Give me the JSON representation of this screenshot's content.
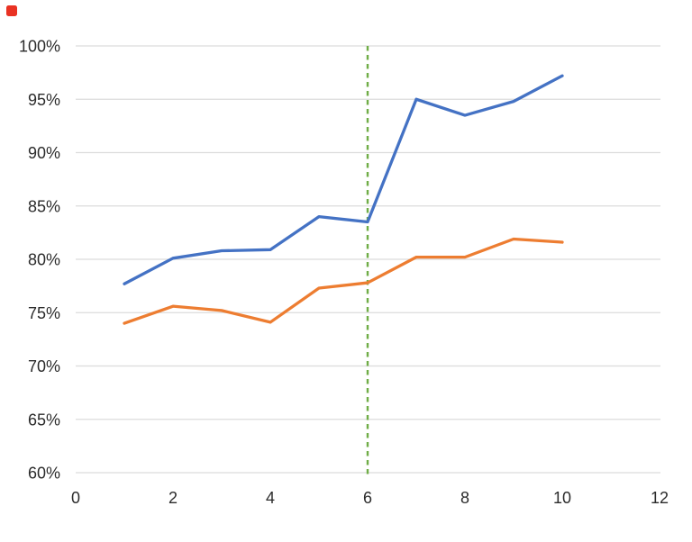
{
  "chart_data": {
    "type": "line",
    "title": "",
    "xlabel": "",
    "ylabel": "",
    "xlim": [
      0,
      12
    ],
    "ylim": [
      60,
      100
    ],
    "x_ticks": [
      0,
      2,
      4,
      6,
      8,
      10,
      12
    ],
    "y_ticks": [
      {
        "value": 60,
        "label": "60%"
      },
      {
        "value": 65,
        "label": "65%"
      },
      {
        "value": 70,
        "label": "70%"
      },
      {
        "value": 75,
        "label": "75%"
      },
      {
        "value": 80,
        "label": "80%"
      },
      {
        "value": 85,
        "label": "85%"
      },
      {
        "value": 90,
        "label": "90%"
      },
      {
        "value": 95,
        "label": "95%"
      },
      {
        "value": 100,
        "label": "100%"
      }
    ],
    "grid": "horizontal-only",
    "legend": "none",
    "x": [
      1,
      2,
      3,
      4,
      5,
      6,
      7,
      8,
      9,
      10
    ],
    "series": [
      {
        "name": "blue-line",
        "color": "#4472c4",
        "values": [
          77.7,
          80.1,
          80.8,
          80.9,
          84.0,
          83.5,
          95.0,
          93.5,
          94.8,
          97.2
        ]
      },
      {
        "name": "orange-line",
        "color": "#ed7d31",
        "values": [
          74.0,
          75.6,
          75.2,
          74.1,
          77.3,
          77.8,
          80.2,
          80.2,
          81.9,
          81.6
        ]
      }
    ],
    "annotations": [
      {
        "type": "vline",
        "x": 6,
        "style": "dashed",
        "color": "#70ad47"
      }
    ]
  },
  "colors": {
    "background": "#ffffff",
    "gridline": "#dcdcdc",
    "tick_text": "#2b2b2b",
    "corner_marker": "#e93223"
  }
}
